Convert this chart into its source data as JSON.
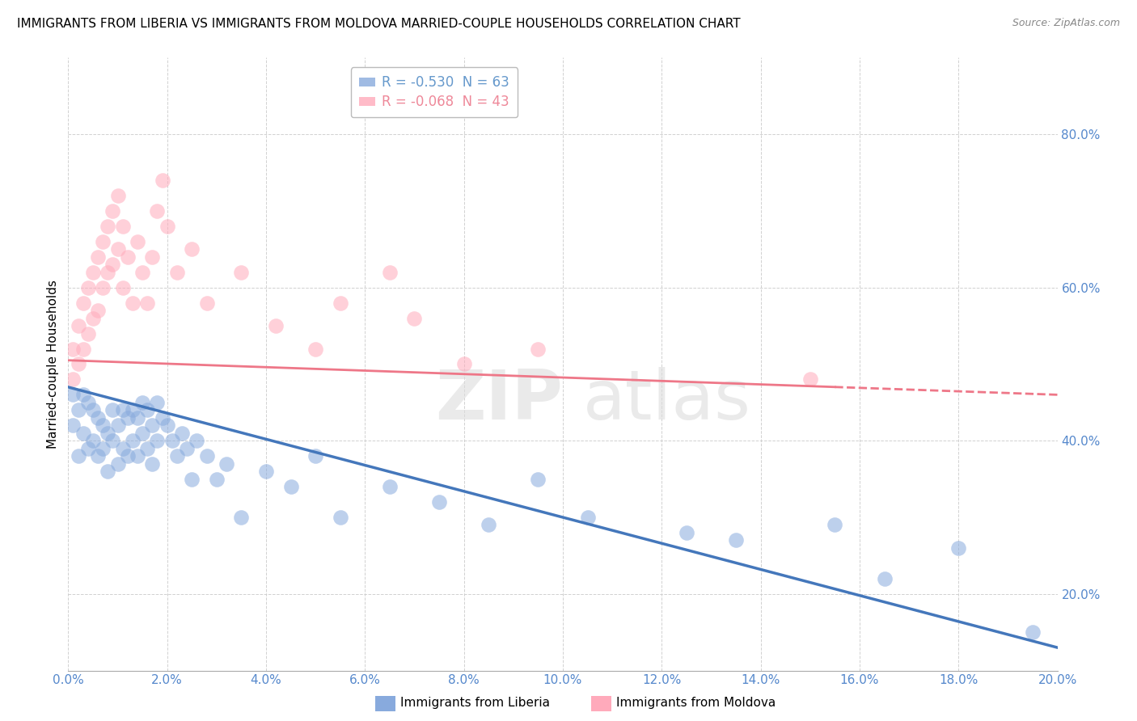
{
  "title": "IMMIGRANTS FROM LIBERIA VS IMMIGRANTS FROM MOLDOVA MARRIED-COUPLE HOUSEHOLDS CORRELATION CHART",
  "source": "Source: ZipAtlas.com",
  "ylabel": "Married-couple Households",
  "xlim": [
    0.0,
    0.2
  ],
  "ylim": [
    0.1,
    0.9
  ],
  "xticks": [
    0.0,
    0.02,
    0.04,
    0.06,
    0.08,
    0.1,
    0.12,
    0.14,
    0.16,
    0.18,
    0.2
  ],
  "yticks": [
    0.2,
    0.4,
    0.6,
    0.8
  ],
  "legend_entries": [
    {
      "label": "R = -0.530  N = 63",
      "color": "#6699cc"
    },
    {
      "label": "R = -0.068  N = 43",
      "color": "#ee8899"
    }
  ],
  "liberia_color": "#88aadd",
  "moldova_color": "#ffaabb",
  "liberia_trend_color": "#4477bb",
  "moldova_trend_color": "#ee7788",
  "liberia_scatter_x": [
    0.001,
    0.001,
    0.002,
    0.002,
    0.003,
    0.003,
    0.004,
    0.004,
    0.005,
    0.005,
    0.006,
    0.006,
    0.007,
    0.007,
    0.008,
    0.008,
    0.009,
    0.009,
    0.01,
    0.01,
    0.011,
    0.011,
    0.012,
    0.012,
    0.013,
    0.013,
    0.014,
    0.014,
    0.015,
    0.015,
    0.016,
    0.016,
    0.017,
    0.017,
    0.018,
    0.018,
    0.019,
    0.02,
    0.021,
    0.022,
    0.023,
    0.024,
    0.025,
    0.026,
    0.028,
    0.03,
    0.032,
    0.035,
    0.04,
    0.045,
    0.05,
    0.055,
    0.065,
    0.075,
    0.085,
    0.095,
    0.105,
    0.125,
    0.135,
    0.155,
    0.165,
    0.18,
    0.195
  ],
  "liberia_scatter_y": [
    0.46,
    0.42,
    0.44,
    0.38,
    0.46,
    0.41,
    0.45,
    0.39,
    0.44,
    0.4,
    0.43,
    0.38,
    0.42,
    0.39,
    0.41,
    0.36,
    0.44,
    0.4,
    0.42,
    0.37,
    0.44,
    0.39,
    0.43,
    0.38,
    0.44,
    0.4,
    0.43,
    0.38,
    0.45,
    0.41,
    0.44,
    0.39,
    0.42,
    0.37,
    0.45,
    0.4,
    0.43,
    0.42,
    0.4,
    0.38,
    0.41,
    0.39,
    0.35,
    0.4,
    0.38,
    0.35,
    0.37,
    0.3,
    0.36,
    0.34,
    0.38,
    0.3,
    0.34,
    0.32,
    0.29,
    0.35,
    0.3,
    0.28,
    0.27,
    0.29,
    0.22,
    0.26,
    0.15
  ],
  "moldova_scatter_x": [
    0.001,
    0.001,
    0.002,
    0.002,
    0.003,
    0.003,
    0.004,
    0.004,
    0.005,
    0.005,
    0.006,
    0.006,
    0.007,
    0.007,
    0.008,
    0.008,
    0.009,
    0.009,
    0.01,
    0.01,
    0.011,
    0.011,
    0.012,
    0.013,
    0.014,
    0.015,
    0.016,
    0.017,
    0.018,
    0.019,
    0.02,
    0.022,
    0.025,
    0.028,
    0.035,
    0.042,
    0.05,
    0.055,
    0.065,
    0.07,
    0.08,
    0.095,
    0.15
  ],
  "moldova_scatter_y": [
    0.52,
    0.48,
    0.55,
    0.5,
    0.58,
    0.52,
    0.6,
    0.54,
    0.62,
    0.56,
    0.64,
    0.57,
    0.66,
    0.6,
    0.68,
    0.62,
    0.7,
    0.63,
    0.72,
    0.65,
    0.68,
    0.6,
    0.64,
    0.58,
    0.66,
    0.62,
    0.58,
    0.64,
    0.7,
    0.74,
    0.68,
    0.62,
    0.65,
    0.58,
    0.62,
    0.55,
    0.52,
    0.58,
    0.62,
    0.56,
    0.5,
    0.52,
    0.48
  ],
  "liberia_trend_x": [
    0.0,
    0.2
  ],
  "liberia_trend_y": [
    0.47,
    0.13
  ],
  "moldova_trend_x": [
    0.0,
    0.2
  ],
  "moldova_trend_y": [
    0.505,
    0.46
  ]
}
